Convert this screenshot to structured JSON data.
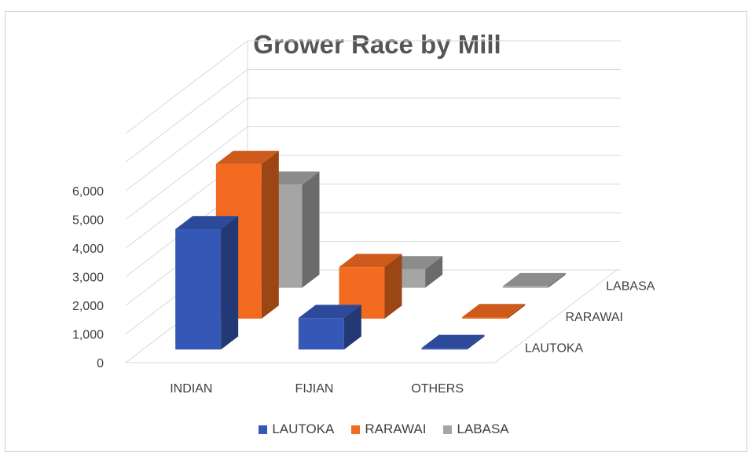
{
  "chart_data": {
    "type": "bar",
    "title": "Grower Race by Mill",
    "categories": [
      "INDIAN",
      "FIJIAN",
      "OTHERS"
    ],
    "series": [
      {
        "name": "LAUTOKA",
        "values": [
          4200,
          1100,
          0
        ],
        "color": "#3557b5"
      },
      {
        "name": "RARAWAI",
        "values": [
          5400,
          1800,
          0
        ],
        "color": "#f26b21"
      },
      {
        "name": "LABASA",
        "values": [
          3600,
          650,
          0
        ],
        "color": "#a5a5a5"
      }
    ],
    "y_ticks": [
      "0",
      "1,000",
      "2,000",
      "3,000",
      "4,000",
      "5,000",
      "6,000"
    ],
    "ylim": [
      0,
      6000
    ],
    "grid": true,
    "legend_position": "bottom",
    "style": "3d-clustered-column"
  }
}
